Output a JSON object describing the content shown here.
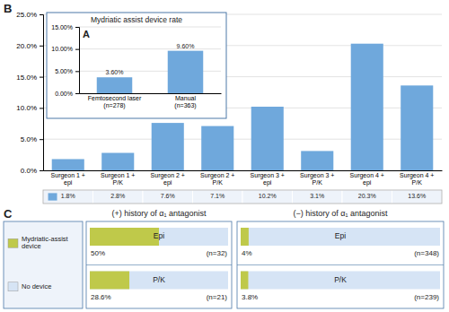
{
  "chart_data": [
    {
      "type": "bar",
      "annotations": [
        "B"
      ],
      "categories": [
        "Surgeon 1 +\nepi",
        "Surgeon 1 +\nP/K",
        "Surgeon 2 +\nepi",
        "Surgeon 2 +\nP/K",
        "Surgeon 3 +\nepi",
        "Surgeon 3 +\nP/K",
        "Surgeon 4 +\nepi",
        "Surgeon 4 +\nP/K"
      ],
      "values": [
        1.8,
        2.8,
        7.6,
        7.1,
        10.2,
        3.1,
        20.3,
        13.6
      ],
      "value_labels": [
        "1.8%",
        "2.8%",
        "7.6%",
        "7.1%",
        "10.2%",
        "3.1%",
        "20.3%",
        "13.6%"
      ],
      "data_labels": true,
      "color": "#6fa8dc",
      "ylim": [
        0,
        25
      ],
      "yticks": [
        {
          "value": 0,
          "label": "0.0%"
        },
        {
          "value": 5,
          "label": "5.0%"
        },
        {
          "value": 10,
          "label": "10.0%"
        },
        {
          "value": 15,
          "label": "15.0%"
        },
        {
          "value": 20,
          "label": "20.0%"
        },
        {
          "value": 25,
          "label": "25.0%"
        }
      ],
      "grid": true
    },
    {
      "type": "bar",
      "title": "Mydriatic assist device rate",
      "annotations": [
        "A"
      ],
      "categories": [
        "Femtosecond laser\n(n=278)",
        "Manual\n(n=363)"
      ],
      "values": [
        3.6,
        9.6
      ],
      "value_labels": [
        "3.60%",
        "9.60%"
      ],
      "data_labels": true,
      "color": "#6fa8dc",
      "ylim": [
        0,
        15
      ],
      "yticks": [
        {
          "value": 0,
          "label": "0.00%"
        },
        {
          "value": 5,
          "label": "5.00%"
        },
        {
          "value": 10,
          "label": "10.00%"
        },
        {
          "value": 15,
          "label": "15.00%"
        }
      ],
      "grid": true
    },
    {
      "type": "bar",
      "orientation": "horizontal",
      "title": "(+) history of α₁ antagonist",
      "annotations": [
        "C"
      ],
      "categories": [
        "Epi",
        "P/K"
      ],
      "series": [
        {
          "name": "Mydriatic-assist\ndevice",
          "color": "#bfc94a",
          "values": [
            50,
            28.6
          ],
          "value_labels": [
            "50%",
            "28.6%"
          ]
        },
        {
          "name": "No device",
          "color": "#d6e4f5",
          "values": [
            100,
            100
          ]
        }
      ],
      "n_labels": [
        "(n=32)",
        "(n=21)"
      ],
      "xlim": [
        0,
        100
      ],
      "data_labels": true,
      "tick_labels": "y",
      "legend": "left"
    },
    {
      "type": "bar",
      "orientation": "horizontal",
      "title": "(−) history of α₁ antagonist",
      "categories": [
        "Epi",
        "P/K"
      ],
      "series": [
        {
          "color": "#bfc94a",
          "values": [
            4,
            3.8
          ],
          "value_labels": [
            "4%",
            "3.8%"
          ]
        },
        {
          "color": "#d6e4f5",
          "values": [
            100,
            100
          ]
        }
      ],
      "n_labels": [
        "(n=348)",
        "(n=239)"
      ],
      "xlim": [
        0,
        100
      ],
      "data_labels": true,
      "tick_labels": "y"
    }
  ]
}
